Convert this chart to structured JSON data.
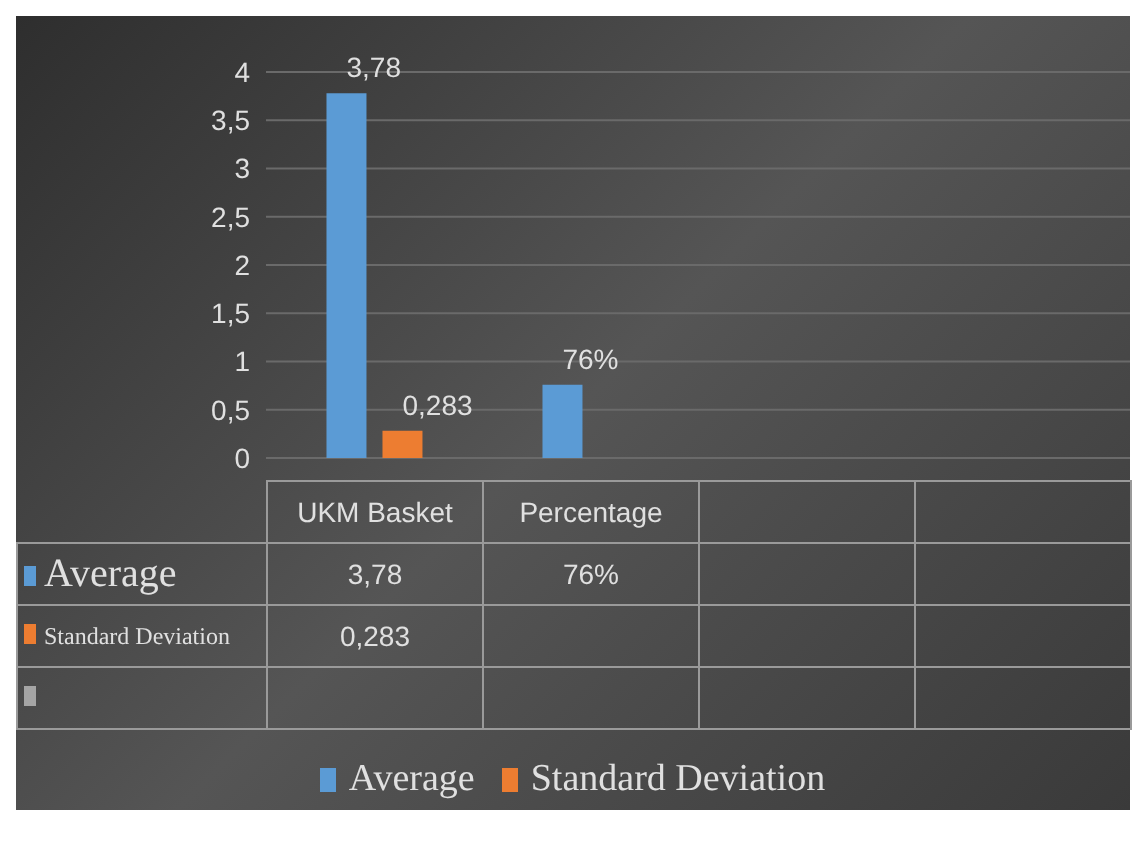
{
  "chart_data": {
    "type": "bar",
    "categories": [
      "UKM Basket",
      "Percentage",
      null,
      null
    ],
    "series": [
      {
        "name": "Average",
        "color": "#5b9bd5",
        "values": [
          3.78,
          0.76,
          null,
          null
        ],
        "value_labels": [
          "3,78",
          "76%",
          null,
          null
        ]
      },
      {
        "name": "Standard Deviation",
        "color": "#ed7d31",
        "values": [
          0.283,
          null,
          null,
          null
        ],
        "value_labels": [
          "0,283",
          null,
          null,
          null
        ]
      },
      {
        "color": "#a5a5a5",
        "values": [
          null,
          null,
          null,
          null
        ]
      }
    ],
    "ylim": [
      0,
      4
    ],
    "yticks": [
      0,
      {
        "value": 0.5,
        "label": "0,5"
      },
      1,
      {
        "value": 1.5,
        "label": "1,5"
      },
      2,
      {
        "value": 2.5,
        "label": "2,5"
      },
      3,
      {
        "value": 3.5,
        "label": "3,5"
      },
      4
    ],
    "grid": "y",
    "legend": "bottom"
  }
}
